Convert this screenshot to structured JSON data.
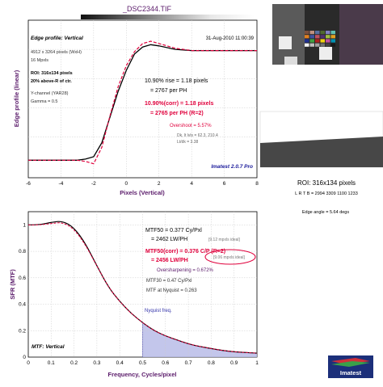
{
  "header": {
    "title": "_DSC2344.TIF"
  },
  "top_panel": {
    "title": "Edge profile: Vertical",
    "date": "31-Aug-2010 11:00:39",
    "info": [
      "4912 x 3264 pixels (WxH)",
      "16 Mpxls"
    ],
    "roi_lines": [
      "ROI: 316x134 pixels",
      "20% above-R of ctr."
    ],
    "channel_lines": [
      "Y-channel (YAR28)",
      "Gamma = 0.5"
    ],
    "rise_lines": [
      "10.90% rise = 1.18 pixels",
      "= 2767 per PH"
    ],
    "corr_lines": [
      "10.90%(corr) = 1.18 pixels",
      "= 2765 per PH (R=2)"
    ],
    "overshoot": "Overshoot = 5.57%",
    "dk_lines": [
      "Dk, lt lvls = 62.3, 210.4",
      "Lt/dk = 3.38"
    ],
    "badge": "Imatest 2.0.7 Pro"
  },
  "top_chart": {
    "chart_data": {
      "type": "line",
      "xlabel": "Pixels (Vertical)",
      "ylabel": "Edge profile (linear)",
      "xlim": [
        -6,
        8
      ],
      "x_ticks": [
        "-6",
        "-4",
        "-2",
        "0",
        "2",
        "4",
        "6",
        "8"
      ],
      "series": [
        {
          "x": [
            -6,
            -4,
            -3,
            -2.5,
            -2,
            -1.5,
            -1,
            -0.5,
            0,
            0.5,
            1,
            1.5,
            2,
            3,
            4,
            5,
            6,
            7,
            8
          ],
          "values": [
            0.05,
            0.05,
            0.05,
            0.06,
            0.08,
            0.2,
            0.42,
            0.64,
            0.82,
            0.96,
            1.02,
            1.04,
            1.03,
            1.0,
            0.99,
            0.99,
            0.99,
            0.99,
            0.99
          ]
        },
        {
          "x": [
            -6,
            -4,
            -3,
            -2.5,
            -2,
            -1.5,
            -1,
            -0.5,
            0,
            0.5,
            1,
            1.5,
            2,
            3,
            4,
            5,
            6,
            7,
            8
          ],
          "values": [
            0.05,
            0.05,
            0.05,
            0.04,
            0.02,
            0.16,
            0.43,
            0.68,
            0.86,
            0.98,
            1.05,
            1.07,
            1.05,
            1.01,
            0.99,
            0.99,
            0.99,
            0.99,
            0.99
          ]
        }
      ]
    }
  },
  "right_panel": {
    "roi_title": "ROI: 316x134 pixels",
    "coords": "L R T B = 2994 3309 1100 1233",
    "edge_angle": "Edge angle = 5.64 degs"
  },
  "bottom_panel": {
    "mtf50_lines": [
      "MTF50 = 0.377 Cy/Pxl",
      "= 2462 LW/PH"
    ],
    "mtf50_ideal": "[9.12 mpxls ideal]",
    "mtf50corr_lines": [
      "MTF50(corr) = 0.376 C/P (R=2)",
      "= 2456 LW/PH"
    ],
    "mtf50corr_ideal": "[9.06 mpxls ideal]",
    "oversharpening": "Oversharpening = 0.672%",
    "mtf30": "MTF30 = 0.47 Cy/Pxl",
    "nyquist_mtf": "MTF at Nyquist = 0.263",
    "nyquist_label": "Nyquist freq.",
    "title": "MTF: Vertical",
    "logo_text": "Imatest"
  },
  "bottom_chart": {
    "chart_data": {
      "type": "line",
      "xlabel": "Frequency, Cycles/pixel",
      "ylabel": "SFR (MTF)",
      "xlim": [
        0,
        1
      ],
      "ylim": [
        0,
        1
      ],
      "x_ticks": [
        "0",
        "0.1",
        "0.2",
        "0.3",
        "0.4",
        "0.5",
        "0.6",
        "0.7",
        "0.8",
        "0.9",
        "1"
      ],
      "y_ticks": [
        "0",
        "0.2",
        "0.4",
        "0.6",
        "0.8",
        "1"
      ],
      "series": [
        {
          "x": [
            0,
            0.05,
            0.1,
            0.15,
            0.2,
            0.25,
            0.3,
            0.35,
            0.4,
            0.45,
            0.5,
            0.55,
            0.6,
            0.65,
            0.7,
            0.75,
            0.8,
            0.85,
            0.9,
            0.95,
            1.0
          ],
          "values": [
            1.0,
            1.0,
            1.02,
            1.03,
            0.98,
            0.86,
            0.69,
            0.53,
            0.42,
            0.33,
            0.26,
            0.2,
            0.16,
            0.13,
            0.1,
            0.08,
            0.065,
            0.05,
            0.04,
            0.035,
            0.03
          ]
        },
        {
          "x": [
            0,
            0.05,
            0.1,
            0.15,
            0.2,
            0.25,
            0.3,
            0.35,
            0.4,
            0.45,
            0.5,
            0.55,
            0.6,
            0.65,
            0.7,
            0.75,
            0.8,
            0.85,
            0.9,
            0.95,
            1.0
          ],
          "values": [
            1.0,
            1.0,
            1.01,
            1.02,
            0.97,
            0.85,
            0.69,
            0.53,
            0.42,
            0.33,
            0.26,
            0.2,
            0.16,
            0.13,
            0.1,
            0.08,
            0.065,
            0.05,
            0.04,
            0.035,
            0.03
          ]
        }
      ]
    }
  },
  "colors": {
    "black_curve": "#000000",
    "red_curve": "#e0003c",
    "fill": "#b8bce8",
    "title_purple": "#5a1a6a",
    "badge_blue": "#1a1a9a",
    "nyquist_blue": "#3333aa"
  }
}
